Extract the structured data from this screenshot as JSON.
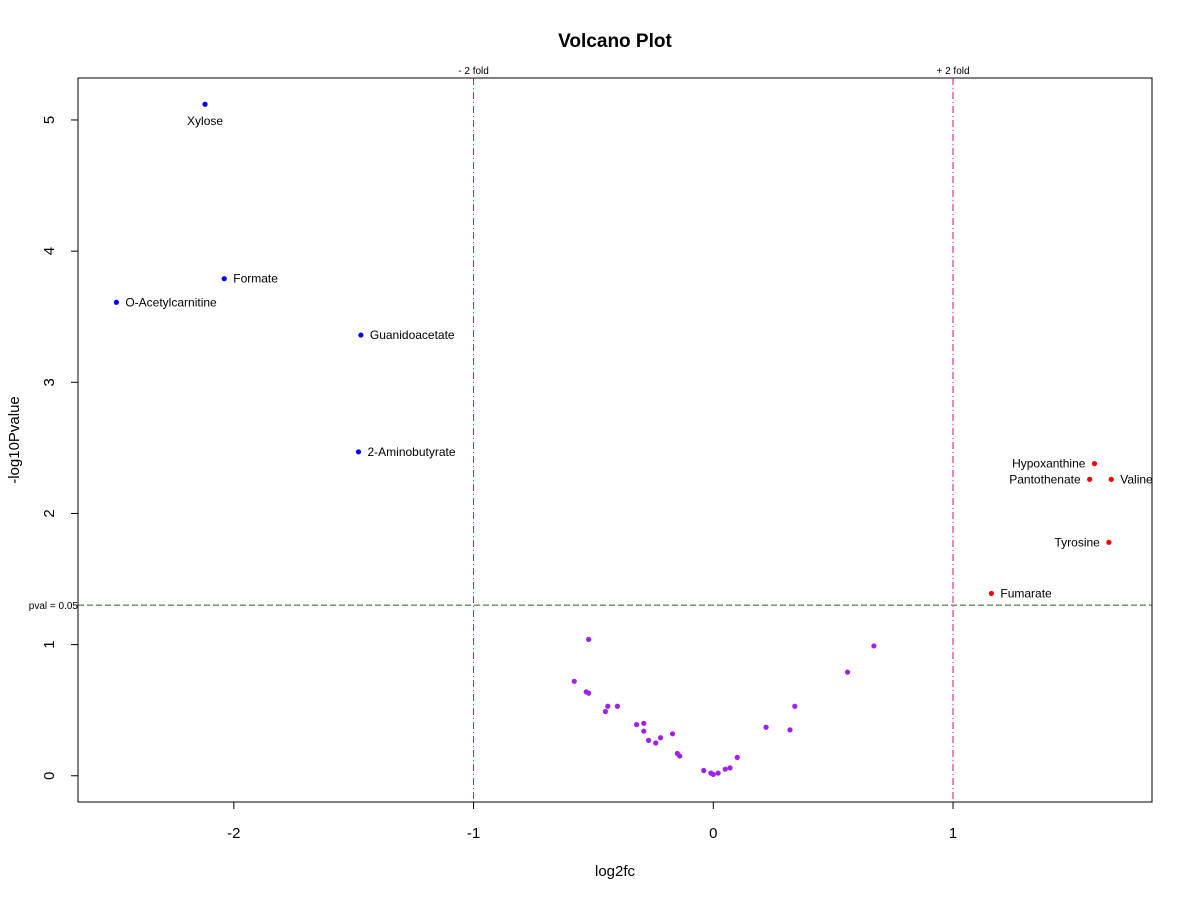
{
  "chart_data": {
    "type": "scatter",
    "title": "Volcano Plot",
    "xlabel": "log2fc",
    "ylabel": "-log10Pvalue",
    "xlim": [
      -2.65,
      1.83
    ],
    "ylim": [
      -0.2,
      5.32
    ],
    "x_ticks": [
      -2,
      -1,
      0,
      1
    ],
    "y_ticks": [
      0,
      1,
      2,
      3,
      4,
      5
    ],
    "grid": false,
    "reference_lines": {
      "vertical": [
        {
          "x": -1,
          "label": "- 2 fold",
          "color": "#c71585"
        },
        {
          "x": 1,
          "label": "+ 2 fold",
          "color": "#c71585"
        }
      ],
      "horizontal": [
        {
          "y": 1.301,
          "label": "pval = 0.05",
          "color": "#2e5e2e"
        }
      ]
    },
    "series": [
      {
        "color": "#0000ff",
        "points": [
          {
            "x": -2.12,
            "y": 5.12,
            "label": "Xylose"
          },
          {
            "x": -2.04,
            "y": 3.79,
            "label": "Formate"
          },
          {
            "x": -2.49,
            "y": 3.61,
            "label": "O-Acetylcarnitine"
          },
          {
            "x": -1.47,
            "y": 3.36,
            "label": "Guanidoacetate"
          },
          {
            "x": -1.48,
            "y": 2.47,
            "label": "2-Aminobutyrate"
          }
        ]
      },
      {
        "color": "#ff0000",
        "points": [
          {
            "x": 1.59,
            "y": 2.38,
            "label": "Hypoxanthine"
          },
          {
            "x": 1.57,
            "y": 2.26,
            "label": "Pantothenate"
          },
          {
            "x": 1.66,
            "y": 2.26,
            "label": "Valine"
          },
          {
            "x": 1.65,
            "y": 1.78,
            "label": "Tyrosine"
          },
          {
            "x": 1.16,
            "y": 1.39,
            "label": "Fumarate"
          }
        ]
      },
      {
        "color": "#a020f0",
        "points": [
          {
            "x": -0.52,
            "y": 1.04
          },
          {
            "x": -0.58,
            "y": 0.72
          },
          {
            "x": -0.53,
            "y": 0.64
          },
          {
            "x": -0.52,
            "y": 0.63
          },
          {
            "x": -0.44,
            "y": 0.53
          },
          {
            "x": -0.45,
            "y": 0.49
          },
          {
            "x": -0.4,
            "y": 0.53
          },
          {
            "x": -0.32,
            "y": 0.39
          },
          {
            "x": -0.29,
            "y": 0.4
          },
          {
            "x": -0.29,
            "y": 0.34
          },
          {
            "x": -0.27,
            "y": 0.27
          },
          {
            "x": -0.24,
            "y": 0.25
          },
          {
            "x": -0.22,
            "y": 0.29
          },
          {
            "x": -0.17,
            "y": 0.32
          },
          {
            "x": -0.15,
            "y": 0.17
          },
          {
            "x": -0.14,
            "y": 0.15
          },
          {
            "x": -0.04,
            "y": 0.04
          },
          {
            "x": -0.01,
            "y": 0.02
          },
          {
            "x": 0.0,
            "y": 0.01
          },
          {
            "x": 0.02,
            "y": 0.02
          },
          {
            "x": 0.05,
            "y": 0.05
          },
          {
            "x": 0.07,
            "y": 0.06
          },
          {
            "x": 0.1,
            "y": 0.14
          },
          {
            "x": 0.22,
            "y": 0.37
          },
          {
            "x": 0.32,
            "y": 0.35
          },
          {
            "x": 0.34,
            "y": 0.53
          },
          {
            "x": 0.56,
            "y": 0.79
          },
          {
            "x": 0.67,
            "y": 0.99
          }
        ]
      }
    ]
  }
}
